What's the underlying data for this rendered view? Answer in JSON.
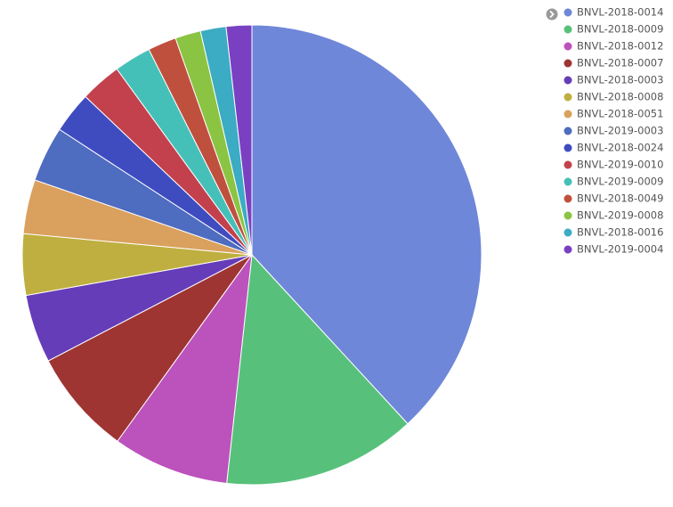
{
  "chart_data": {
    "type": "pie",
    "categories": [
      "BNVL-2018-0014",
      "BNVL-2018-0009",
      "BNVL-2018-0012",
      "BNVL-2018-0007",
      "BNVL-2018-0003",
      "BNVL-2018-0008",
      "BNVL-2018-0051",
      "BNVL-2019-0003",
      "BNVL-2018-0024",
      "BNVL-2019-0010",
      "BNVL-2019-0009",
      "BNVL-2018-0049",
      "BNVL-2019-0008",
      "BNVL-2018-0016",
      "BNVL-2019-0004"
    ],
    "values": [
      38.1,
      13.6,
      8.2,
      7.4,
      4.8,
      4.3,
      3.8,
      3.9,
      2.9,
      2.9,
      2.6,
      2.0,
      1.8,
      1.8,
      1.8
    ],
    "colors": [
      "#6f87d8",
      "#57c17b",
      "#bc52bc",
      "#9e3533",
      "#663db8",
      "#bfaf40",
      "#daa05d",
      "#4e6cc0",
      "#3f4cc0",
      "#c2414d",
      "#45c0b8",
      "#c0503e",
      "#8bc442",
      "#3cabc4",
      "#7a40c2"
    ],
    "legend": "right"
  }
}
